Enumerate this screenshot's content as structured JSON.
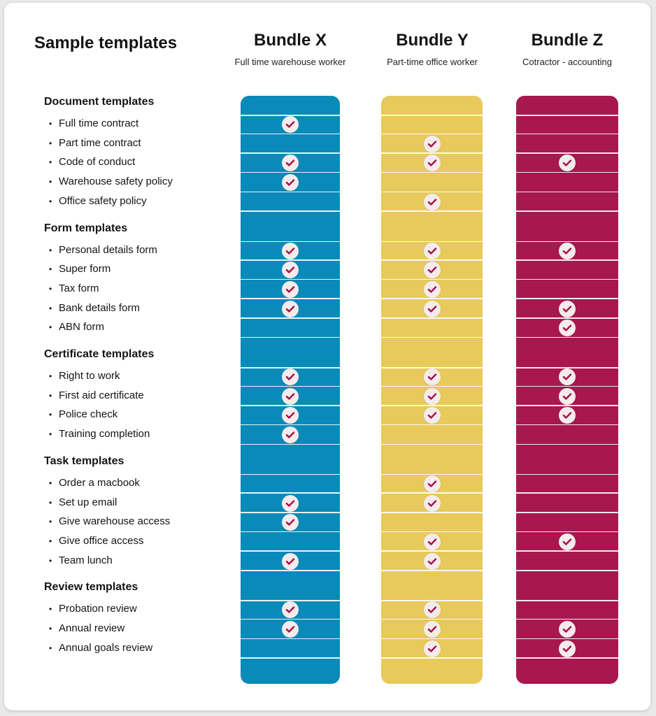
{
  "title": "Sample templates",
  "bundles": [
    {
      "name": "Bundle X",
      "subtitle": "Full time warehouse worker",
      "color": "#0a8ab9"
    },
    {
      "name": "Bundle Y",
      "subtitle": "Part-time office worker",
      "color": "#e8c95b"
    },
    {
      "name": "Bundle Z",
      "subtitle": "Cotractor - accounting",
      "color": "#a8174f"
    }
  ],
  "check_color": "#a8174f",
  "icon": "check-icon",
  "sections": [
    {
      "label": "Document templates",
      "rows": [
        {
          "label": "Full time contract",
          "checks": [
            true,
            false,
            false
          ]
        },
        {
          "label": "Part time contract",
          "checks": [
            false,
            true,
            false
          ]
        },
        {
          "label": "Code of conduct",
          "checks": [
            true,
            true,
            true
          ]
        },
        {
          "label": "Warehouse safety policy",
          "checks": [
            true,
            false,
            false
          ]
        },
        {
          "label": "Office safety policy",
          "checks": [
            false,
            true,
            false
          ]
        }
      ]
    },
    {
      "label": "Form templates",
      "rows": [
        {
          "label": "Personal details form",
          "checks": [
            true,
            true,
            true
          ]
        },
        {
          "label": "Super form",
          "checks": [
            true,
            true,
            false
          ]
        },
        {
          "label": "Tax form",
          "checks": [
            true,
            true,
            false
          ]
        },
        {
          "label": "Bank details form",
          "checks": [
            true,
            true,
            true
          ]
        },
        {
          "label": "ABN form",
          "checks": [
            false,
            false,
            true
          ]
        }
      ]
    },
    {
      "label": "Certificate templates",
      "rows": [
        {
          "label": "Right to work",
          "checks": [
            true,
            true,
            true
          ]
        },
        {
          "label": "First aid certificate",
          "checks": [
            true,
            true,
            true
          ]
        },
        {
          "label": "Police check",
          "checks": [
            true,
            true,
            true
          ]
        },
        {
          "label": "Training completion",
          "checks": [
            true,
            false,
            false
          ]
        }
      ]
    },
    {
      "label": "Task templates",
      "rows": [
        {
          "label": "Order a macbook",
          "checks": [
            false,
            true,
            false
          ]
        },
        {
          "label": "Set up email",
          "checks": [
            true,
            true,
            false
          ]
        },
        {
          "label": "Give warehouse access",
          "checks": [
            true,
            false,
            false
          ]
        },
        {
          "label": "Give office access",
          "checks": [
            false,
            true,
            true
          ]
        },
        {
          "label": "Team lunch",
          "checks": [
            true,
            true,
            false
          ]
        }
      ]
    },
    {
      "label": "Review templates",
      "rows": [
        {
          "label": "Probation review",
          "checks": [
            true,
            true,
            false
          ]
        },
        {
          "label": "Annual review",
          "checks": [
            true,
            true,
            true
          ]
        },
        {
          "label": "Annual goals review",
          "checks": [
            false,
            true,
            true
          ]
        }
      ]
    }
  ]
}
